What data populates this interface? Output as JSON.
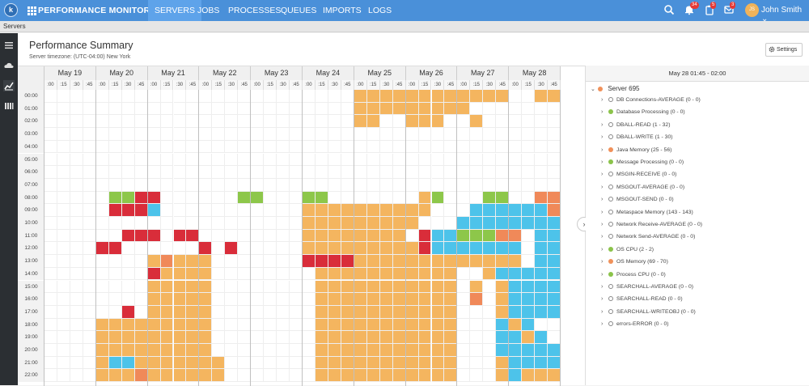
{
  "app": {
    "title": "PERFORMANCE MONITORING",
    "logo_letter": "k"
  },
  "nav": {
    "tabs": [
      {
        "label": "SERVERS",
        "active": true
      },
      {
        "label": "JOBS"
      },
      {
        "label": "PROCESSES"
      },
      {
        "label": "QUEUES"
      },
      {
        "label": "IMPORTS"
      },
      {
        "label": "LOGS"
      }
    ]
  },
  "topbar": {
    "badges": [
      "34",
      "5",
      "3"
    ],
    "user": "John Smith",
    "avatar_initials": "JS"
  },
  "breadcrumb": "Servers",
  "page": {
    "title": "Performance Summary",
    "timezone": "Server timezone: (UTC-04:00) New York",
    "settings_label": "Settings"
  },
  "grid": {
    "days": [
      "May 19",
      "May 20",
      "May 21",
      "May 22",
      "May 23",
      "May 24",
      "May 25",
      "May 26",
      "May 27",
      "May 28"
    ],
    "quarters": [
      ":00",
      ":15",
      ":30",
      ":45"
    ],
    "hours": [
      "00:00",
      "01:00",
      "02:00",
      "03:00",
      "04:00",
      "05:00",
      "06:00",
      "07:00",
      "08:00",
      "09:00",
      "10:00",
      "11:00",
      "12:00",
      "13:00",
      "14:00",
      "15:00",
      "16:00",
      "17:00",
      "18:00",
      "19:00",
      "20:00",
      "21:00",
      "22:00"
    ],
    "colors": {
      "o": "#f4b55f",
      "b": "#4dc3ea",
      "r": "#d92d3a",
      "g": "#8dc74a",
      "d": "#f08959"
    },
    "rows": [
      "........................oooooooooooo..oooo..........oooooooo",
      "........................ooooooooo...........................",
      "........................oo..ooo..o..........................",
      "........................................................dddd",
      "........................................................dddd",
      "........................................................dddd",
      "........................................................dddd",
      "........................................................dddd",
      ".....ggrr......gg...gg.......og...gg..dddd",
      ".....rrrb...........oooooooooo...bbbbbbddooobbobbo",
      "....................ooooooooo...bbbbbbbbbbbbobobo",
      "......rrr.rr........oooooooo.rbbgggdd.bbbbbbbbob",
      "....rr......r.r.....ooooooooorbbbbbbb.bbbbbbbobbo",
      "........odooo.......rrrrooooooooooooo.bbbbbbbobbbb",
      "........roooo........ooooooooooo..obbbbbbbbbbbbbb",
      "........ooooo........ooooooooooo.o.obbbbbbbbbbbbb",
      "........ooooo........ooooooooooo.d.obbbbbbbbbbbbb",
      "......r.ooooo........ooooooooooo...obbbbbbbbbbbbb",
      "....ooooooooo........ooooooooooo...bob..........o",
      "....ooooooooo........ooooooooooo...bbob........bbb",
      "....ooooooooo........ooooooooooo...bbbbbb.........",
      "....obbooooooo.......ooooooooooo...obbbbbbbbbbbbbr",
      "....ooodoooooo.......ooooooooooo...oboooooooooooo"
    ]
  },
  "panel": {
    "header": "May 28 01:45 - 02:00",
    "server": "Server 695",
    "items": [
      {
        "label": "DB Connections-AVERAGE (0 - 0)",
        "status": "hollow"
      },
      {
        "label": "Database Processing (0 - 0)",
        "status": "green"
      },
      {
        "label": "DBALL-READ (1 - 32)",
        "status": "hollow"
      },
      {
        "label": "DBALL-WRITE (1 - 30)",
        "status": "hollow"
      },
      {
        "label": "Java Memory (25 - 56)",
        "status": "orange"
      },
      {
        "label": "Message Processing (0 - 0)",
        "status": "green"
      },
      {
        "label": "MSGIN-RECEIVE (0 - 0)",
        "status": "hollow"
      },
      {
        "label": "MSGOUT-AVERAGE (0 - 0)",
        "status": "hollow"
      },
      {
        "label": "MSGOUT-SEND (0 - 0)",
        "status": "hollow"
      },
      {
        "label": "Metaspace Memory (143 - 143)",
        "status": "hollow"
      },
      {
        "label": "Network Receive-AVERAGE (0 - 0)",
        "status": "hollow"
      },
      {
        "label": "Network Send-AVERAGE (0 - 0)",
        "status": "hollow"
      },
      {
        "label": "OS CPU (2 - 2)",
        "status": "green"
      },
      {
        "label": "OS Memory (69 - 70)",
        "status": "orange"
      },
      {
        "label": "Process CPU (0 - 0)",
        "status": "green"
      },
      {
        "label": "SEARCHALL-AVERAGE (0 - 0)",
        "status": "hollow"
      },
      {
        "label": "SEARCHALL-READ (0 - 0)",
        "status": "hollow"
      },
      {
        "label": "SEARCHALL-WRITEOBJ (0 - 0)",
        "status": "hollow"
      },
      {
        "label": "errors-ERROR (0 - 0)",
        "status": "hollow"
      }
    ]
  }
}
